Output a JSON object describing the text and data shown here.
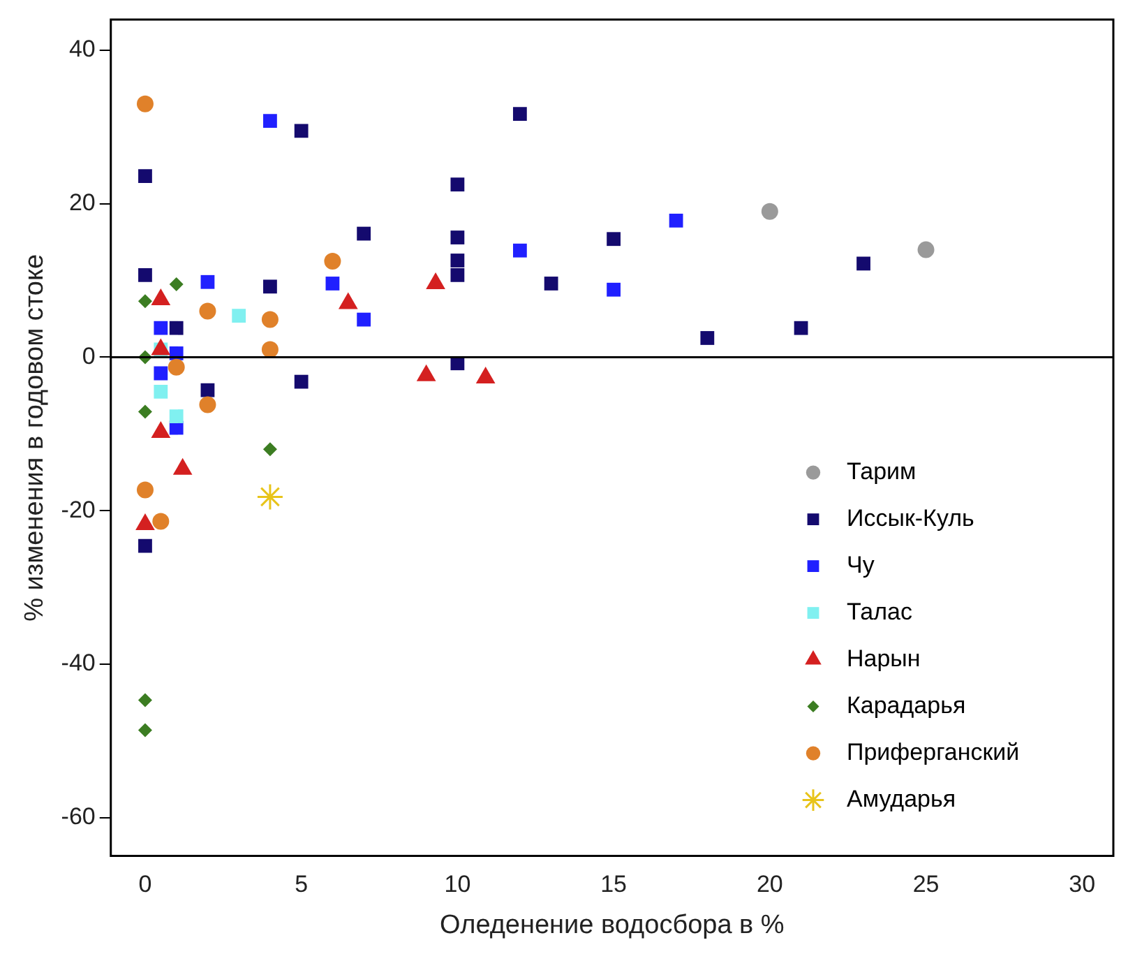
{
  "chart_data": {
    "type": "scatter",
    "xlabel": "Оледенение водосбора в %",
    "ylabel": "% изменения в годовом стоке",
    "xlim": [
      -1.1,
      31
    ],
    "xticks": [
      0,
      5,
      10,
      15,
      20,
      25,
      30
    ],
    "ylim": [
      -65,
      44
    ],
    "yticks": [
      -60,
      -40,
      -20,
      0,
      20,
      40
    ],
    "grid": false,
    "legend": "bottom right",
    "ref_lines": [
      {
        "axis": "y",
        "value": 0,
        "color": "#000000"
      }
    ],
    "series": [
      {
        "name": "Тарим",
        "color": "#9a9a9a",
        "marker": "circle",
        "x": [
          20,
          25
        ],
        "values": [
          19,
          14
        ]
      },
      {
        "name": "Иссык-Куль",
        "color": "#140a6e",
        "marker": "square",
        "x": [
          0,
          0,
          0,
          1,
          2,
          4,
          5,
          5,
          7,
          10,
          10,
          10,
          10,
          10,
          12,
          13,
          15,
          18,
          21,
          23
        ],
        "values": [
          23.6,
          10.7,
          -24.6,
          3.8,
          -4.3,
          9.2,
          29.5,
          -3.2,
          16.1,
          22.5,
          15.6,
          12.6,
          10.7,
          -0.8,
          31.7,
          9.6,
          15.4,
          2.5,
          3.8,
          12.2
        ]
      },
      {
        "name": "Чу",
        "color": "#2020ff",
        "marker": "square",
        "x": [
          4,
          2,
          0.5,
          1,
          0.5,
          1,
          6,
          7,
          12,
          15,
          17
        ],
        "values": [
          30.8,
          9.8,
          3.8,
          0.5,
          -2.1,
          -9.2,
          9.6,
          4.9,
          13.9,
          8.8,
          17.8
        ]
      },
      {
        "name": "Талас",
        "color": "#80f0f0",
        "marker": "square",
        "x": [
          3,
          0.5,
          0.5,
          1
        ],
        "values": [
          5.4,
          1,
          -4.5,
          -7.7
        ]
      },
      {
        "name": "Нарын",
        "color": "#d42020",
        "marker": "triangle",
        "x": [
          0.5,
          0.5,
          0.5,
          1.2,
          0,
          6.5,
          9.3,
          9,
          10.9
        ],
        "values": [
          7.5,
          1,
          -9.8,
          -14.6,
          -21.8,
          7,
          9.6,
          -2.4,
          -2.7
        ]
      },
      {
        "name": "Карадарья",
        "color": "#3c7d22",
        "marker": "diamond",
        "x": [
          0,
          1,
          0,
          0,
          4,
          0,
          0
        ],
        "values": [
          7.3,
          9.5,
          0,
          -7.1,
          -12,
          -44.7,
          -48.6
        ]
      },
      {
        "name": "Приферганский",
        "color": "#e0812a",
        "marker": "circle",
        "x": [
          0,
          2,
          4,
          4,
          1,
          2,
          0,
          0.5,
          6
        ],
        "values": [
          33,
          6,
          4.9,
          1,
          -1.3,
          -6.2,
          -17.3,
          -21.4,
          12.5
        ]
      },
      {
        "name": "Амударья",
        "color": "#e8c41a",
        "marker": "cross",
        "x": [
          4
        ],
        "values": [
          -18.2
        ]
      }
    ]
  }
}
